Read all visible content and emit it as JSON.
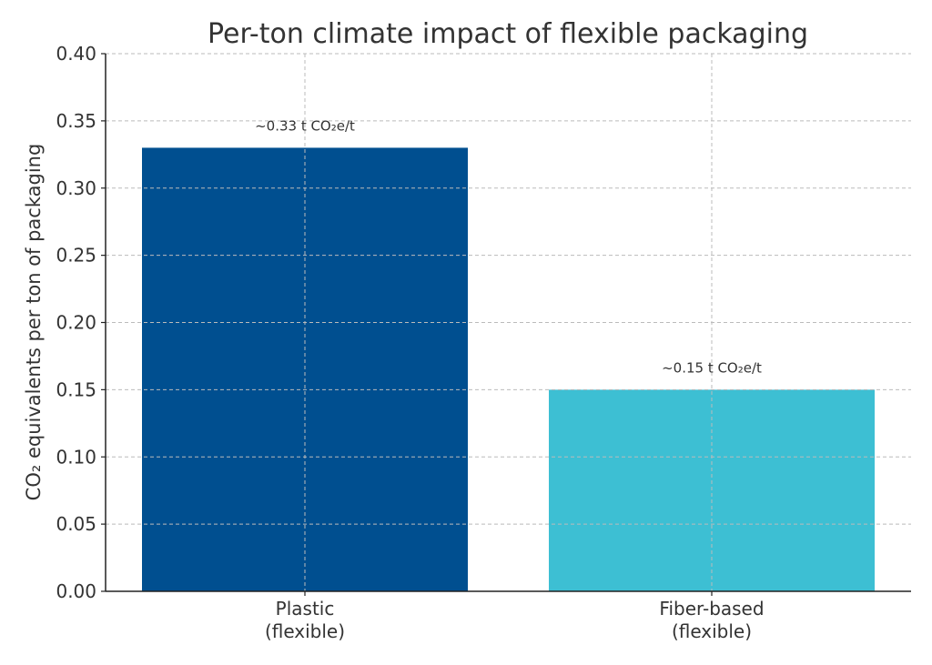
{
  "chart_data": {
    "type": "bar",
    "title": "Per-ton climate impact of flexible packaging",
    "xlabel": "",
    "ylabel": "CO₂ equivalents per ton of packaging",
    "categories": [
      [
        "Plastic",
        "(flexible)"
      ],
      [
        "Fiber-based",
        "(flexible)"
      ]
    ],
    "values": [
      0.33,
      0.15
    ],
    "data_labels": [
      "~0.33 t CO₂e/t",
      "~0.15 t CO₂e/t"
    ],
    "colors": [
      "#004f90",
      "#3dbfd3"
    ],
    "ylim": [
      0,
      0.4
    ],
    "yticks": [
      "0.00",
      "0.05",
      "0.10",
      "0.15",
      "0.20",
      "0.25",
      "0.30",
      "0.35",
      "0.40"
    ],
    "grid": true
  }
}
